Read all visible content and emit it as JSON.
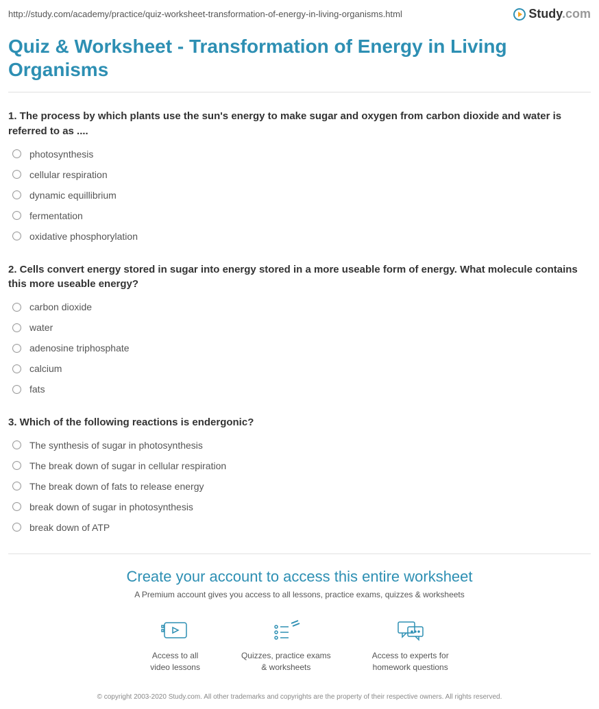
{
  "url": "http://study.com/academy/practice/quiz-worksheet-transformation-of-energy-in-living-organisms.html",
  "logo": {
    "study": "Study",
    "com": ".com"
  },
  "title": "Quiz & Worksheet - Transformation of Energy in Living Organisms",
  "questions": [
    {
      "number": "1.",
      "text": "The process by which plants use the sun's energy to make sugar and oxygen from carbon dioxide and water is referred to as ....",
      "options": [
        "photosynthesis",
        "cellular respiration",
        "dynamic equillibrium",
        "fermentation",
        "oxidative phosphorylation"
      ]
    },
    {
      "number": "2.",
      "text": "Cells convert energy stored in sugar into energy stored in a more useable form of energy. What molecule contains this more useable energy?",
      "options": [
        "carbon dioxide",
        "water",
        "adenosine triphosphate",
        "calcium",
        "fats"
      ]
    },
    {
      "number": "3.",
      "text": "Which of the following reactions is endergonic?",
      "options": [
        "The synthesis of sugar in photosynthesis",
        "The break down of sugar in cellular respiration",
        "The break down of fats to release energy",
        "break down of sugar in photosynthesis",
        "break down of ATP"
      ]
    }
  ],
  "cta": {
    "title": "Create your account to access this entire worksheet",
    "subtitle": "A Premium account gives you access to all lessons, practice exams, quizzes & worksheets",
    "features": [
      {
        "line1": "Access to all",
        "line2": "video lessons"
      },
      {
        "line1": "Quizzes, practice exams",
        "line2": "& worksheets"
      },
      {
        "line1": "Access to experts for",
        "line2": "homework questions"
      }
    ]
  },
  "copyright": "© copyright 2003-2020 Study.com. All other trademarks and copyrights are the property of their respective owners. All rights reserved."
}
